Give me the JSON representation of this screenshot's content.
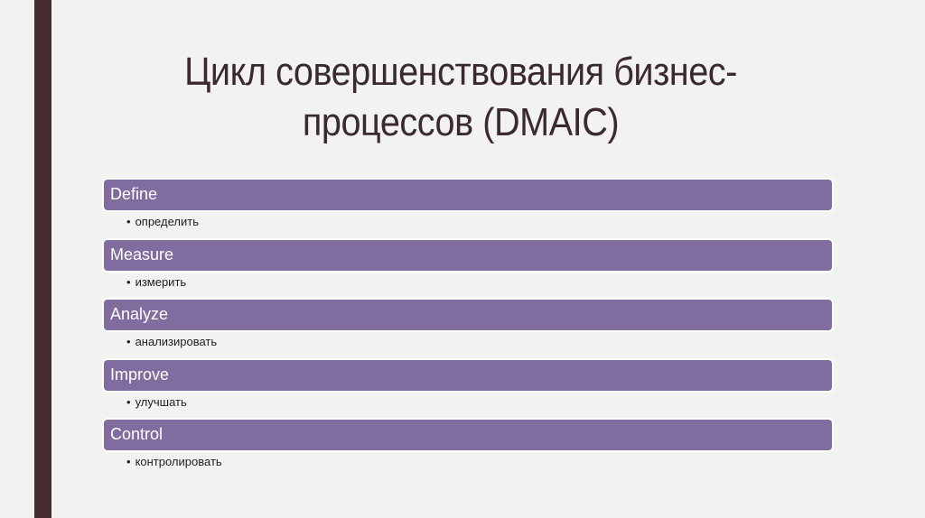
{
  "slide": {
    "title": "Цикл совершенствования бизнес-процессов (DMAIC)",
    "accent_color": "#816c9f",
    "sidebar_color": "#472b30"
  },
  "items": [
    {
      "label": "Define",
      "description": "определить"
    },
    {
      "label": "Measure",
      "description": "измерить"
    },
    {
      "label": "Analyze",
      "description": "анализировать"
    },
    {
      "label": "Improve",
      "description": "улучшать"
    },
    {
      "label": "Control",
      "description": "контролировать"
    }
  ],
  "bullet_glyph": "•"
}
